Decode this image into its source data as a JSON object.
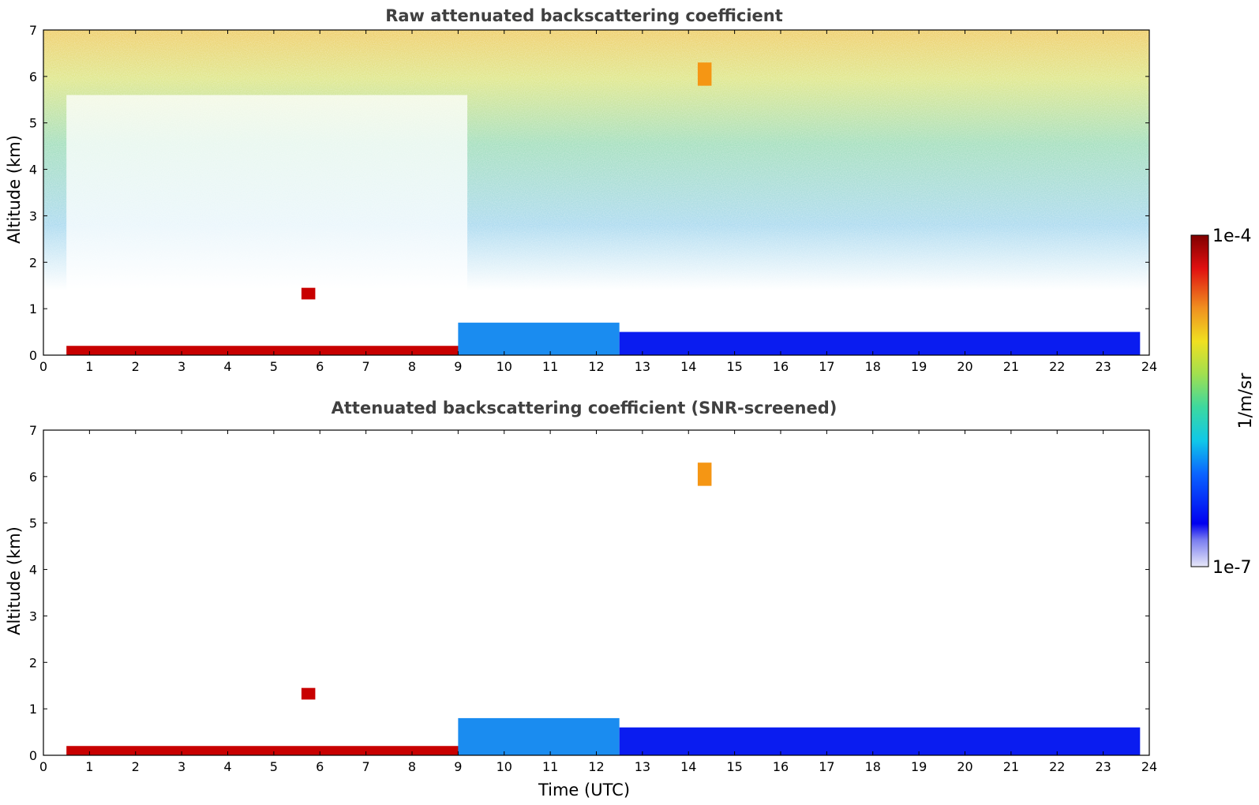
{
  "colors": {
    "frame": "#000000",
    "title": "#404040",
    "boundary_layer_blue": "#0a1cf0",
    "dense_aerosol_red": "#c80000",
    "mid_level": "#19b4e6",
    "upper_yellow": "#e6dc32",
    "orange": "#f59614"
  },
  "chart_data": [
    {
      "type": "heatmap",
      "title": "Raw attenuated backscattering coefficient",
      "xlabel": "",
      "ylabel": "Altitude (km)",
      "xlim": [
        0,
        24
      ],
      "ylim": [
        0,
        7
      ],
      "xticks": [
        "0",
        "1",
        "2",
        "3",
        "4",
        "5",
        "6",
        "7",
        "8",
        "9",
        "10",
        "11",
        "12",
        "13",
        "14",
        "15",
        "16",
        "17",
        "18",
        "19",
        "20",
        "21",
        "22",
        "23",
        "24"
      ],
      "yticks": [
        "0",
        "1",
        "2",
        "3",
        "4",
        "5",
        "6",
        "7"
      ],
      "features": [
        {
          "x": [
            0.5,
            9.2
          ],
          "y": [
            0,
            0.2
          ],
          "level": "1e-4"
        },
        {
          "x": [
            5.6,
            5.9
          ],
          "y": [
            1.2,
            1.45
          ],
          "level": "1e-4"
        },
        {
          "x": [
            9,
            12.5
          ],
          "y": [
            0,
            0.7
          ],
          "level": "2e-6"
        },
        {
          "x": [
            12.5,
            23.8
          ],
          "y": [
            0,
            0.5
          ],
          "level": "1e-6"
        },
        {
          "x": [
            14.2,
            14.5
          ],
          "y": [
            5.8,
            6.3
          ],
          "level": "3e-5"
        }
      ]
    },
    {
      "type": "heatmap",
      "title": "Attenuated backscattering coefficient (SNR-screened)",
      "xlabel": "Time (UTC)",
      "ylabel": "Altitude (km)",
      "xlim": [
        0,
        24
      ],
      "ylim": [
        0,
        7
      ],
      "xticks": [
        "0",
        "1",
        "2",
        "3",
        "4",
        "5",
        "6",
        "7",
        "8",
        "9",
        "10",
        "11",
        "12",
        "13",
        "14",
        "15",
        "16",
        "17",
        "18",
        "19",
        "20",
        "21",
        "22",
        "23",
        "24"
      ],
      "yticks": [
        "0",
        "1",
        "2",
        "3",
        "4",
        "5",
        "6",
        "7"
      ],
      "features": [
        {
          "x": [
            0.5,
            9.2
          ],
          "y": [
            0,
            0.2
          ],
          "level": "1e-4"
        },
        {
          "x": [
            5.6,
            5.9
          ],
          "y": [
            1.2,
            1.45
          ],
          "level": "1e-4"
        },
        {
          "x": [
            9,
            12.5
          ],
          "y": [
            0,
            0.8
          ],
          "level": "2e-6"
        },
        {
          "x": [
            12.5,
            23.8
          ],
          "y": [
            0,
            0.6
          ],
          "level": "1e-6"
        },
        {
          "x": [
            14.2,
            14.5
          ],
          "y": [
            5.8,
            6.3
          ],
          "level": "3e-5"
        }
      ]
    }
  ],
  "colorbar": {
    "min_label": "1e-7",
    "max_label": "1e-4",
    "unit": "1/m/sr",
    "scale": "log"
  }
}
